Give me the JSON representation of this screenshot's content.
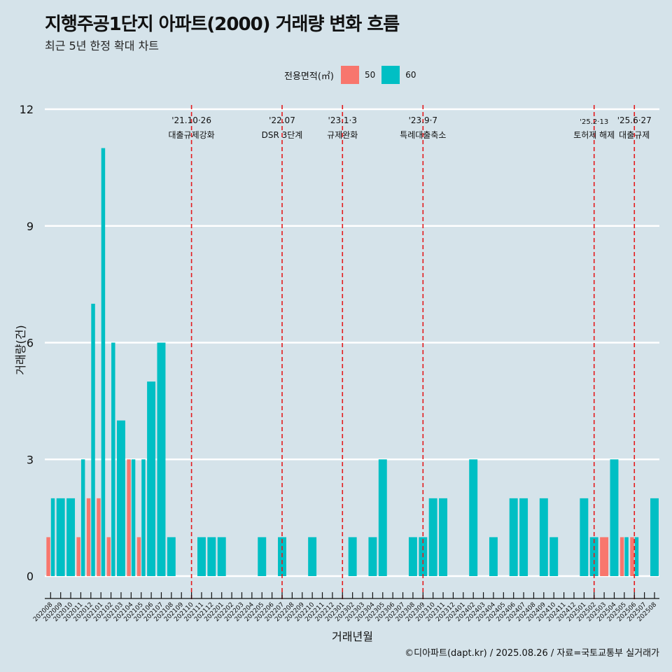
{
  "header": {
    "title": "지행주공1단지 아파트(2000) 거래량 변화 흐름",
    "subtitle": "최근 5년 한정 확대 차트"
  },
  "legend": {
    "title": "전용면적(㎡)",
    "items": [
      {
        "label": "50",
        "color": "#F8766D"
      },
      {
        "label": "60",
        "color": "#00BFC4"
      }
    ]
  },
  "caption": "©디아파트(dapt.kr) / 2025.08.26 / 자료=국토교통부 실거래가",
  "chart_data": {
    "type": "bar",
    "title": "지행주공1단지 아파트(2000) 거래량 변화 흐름",
    "subtitle": "최근 5년 한정 확대 차트",
    "xlabel": "거래년월",
    "ylabel": "거래량(건)",
    "ylim": [
      0,
      12
    ],
    "yticks": [
      0,
      3,
      6,
      9,
      12
    ],
    "grid": true,
    "legend_position": "top",
    "categories": [
      "202008",
      "202009",
      "202010",
      "202011",
      "202012",
      "202101",
      "202102",
      "202103",
      "202104",
      "202105",
      "202106",
      "202107",
      "202108",
      "202109",
      "202110",
      "202111",
      "202112",
      "202201",
      "202202",
      "202203",
      "202204",
      "202205",
      "202206",
      "202207",
      "202208",
      "202209",
      "202210",
      "202211",
      "202212",
      "202301",
      "202302",
      "202303",
      "202304",
      "202305",
      "202306",
      "202307",
      "202308",
      "202309",
      "202310",
      "202311",
      "202312",
      "202401",
      "202402",
      "202403",
      "202404",
      "202405",
      "202406",
      "202407",
      "202408",
      "202409",
      "202410",
      "202411",
      "202412",
      "202501",
      "202502",
      "202503",
      "202504",
      "202505",
      "202506",
      "202507",
      "202508"
    ],
    "series": [
      {
        "name": "50",
        "color": "#F8766D",
        "values": [
          1,
          0,
          0,
          1,
          2,
          2,
          1,
          0,
          3,
          1,
          0,
          0,
          0,
          0,
          0,
          0,
          0,
          0,
          0,
          0,
          0,
          0,
          0,
          0,
          0,
          0,
          0,
          0,
          0,
          0,
          0,
          0,
          0,
          0,
          0,
          0,
          0,
          0,
          0,
          0,
          0,
          0,
          0,
          0,
          0,
          0,
          0,
          0,
          0,
          0,
          0,
          0,
          0,
          0,
          0,
          1,
          0,
          1,
          1,
          0,
          0
        ]
      },
      {
        "name": "60",
        "color": "#00BFC4",
        "values": [
          2,
          2,
          2,
          3,
          7,
          11,
          6,
          4,
          3,
          3,
          5,
          6,
          1,
          0,
          0,
          1,
          1,
          1,
          0,
          0,
          0,
          1,
          0,
          1,
          0,
          0,
          1,
          0,
          0,
          0,
          1,
          0,
          1,
          3,
          0,
          0,
          1,
          1,
          2,
          2,
          0,
          0,
          3,
          0,
          1,
          0,
          2,
          2,
          0,
          2,
          1,
          0,
          0,
          2,
          1,
          0,
          3,
          1,
          1,
          0,
          2
        ]
      }
    ],
    "annotations": [
      {
        "category": "202110",
        "date": "'21.10·26",
        "label": "대출규제강화"
      },
      {
        "category": "202207",
        "date": "'22.07",
        "label": "DSR 3단계"
      },
      {
        "category": "202301",
        "date": "'23.1·3",
        "label": "규제완화"
      },
      {
        "category": "202309",
        "date": "'23.9·7",
        "label": "특례대출축소"
      },
      {
        "category": "202502",
        "date": "'25.2·13",
        "label": "토허제 해제"
      },
      {
        "category": "202506",
        "date": "'25.6·27",
        "label": "대출규제"
      }
    ],
    "annotation_line_color": "#E41A1C"
  }
}
